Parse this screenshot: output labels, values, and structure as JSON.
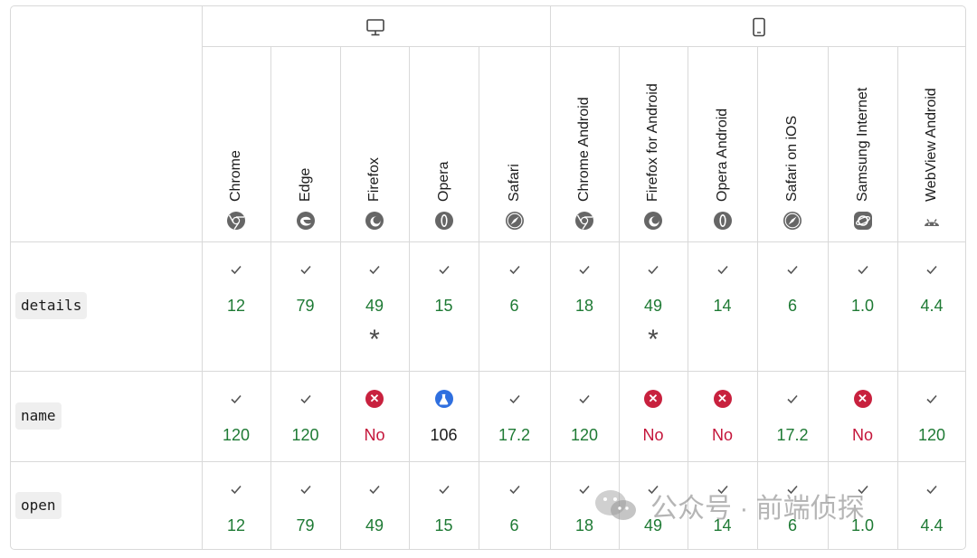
{
  "platforms": [
    {
      "name": "desktop",
      "icon": "monitor-icon"
    },
    {
      "name": "mobile",
      "icon": "phone-icon"
    }
  ],
  "browsers": [
    {
      "label": "Chrome",
      "icon": "chrome-icon"
    },
    {
      "label": "Edge",
      "icon": "edge-icon"
    },
    {
      "label": "Firefox",
      "icon": "firefox-icon"
    },
    {
      "label": "Opera",
      "icon": "opera-icon"
    },
    {
      "label": "Safari",
      "icon": "safari-icon"
    },
    {
      "label": "Chrome Android",
      "icon": "chrome-icon"
    },
    {
      "label": "Firefox for Android",
      "icon": "firefox-icon"
    },
    {
      "label": "Opera Android",
      "icon": "opera-icon"
    },
    {
      "label": "Safari on iOS",
      "icon": "safari-icon"
    },
    {
      "label": "Samsung Internet",
      "icon": "samsung-internet-icon"
    },
    {
      "label": "WebView Android",
      "icon": "android-icon"
    }
  ],
  "rows": [
    {
      "feature": "details",
      "cells": [
        {
          "status": "yes",
          "version": "12"
        },
        {
          "status": "yes",
          "version": "79"
        },
        {
          "status": "yes",
          "version": "49",
          "note": "*"
        },
        {
          "status": "yes",
          "version": "15"
        },
        {
          "status": "yes",
          "version": "6"
        },
        {
          "status": "yes",
          "version": "18"
        },
        {
          "status": "yes",
          "version": "49",
          "note": "*"
        },
        {
          "status": "yes",
          "version": "14"
        },
        {
          "status": "yes",
          "version": "6"
        },
        {
          "status": "yes",
          "version": "1.0"
        },
        {
          "status": "yes",
          "version": "4.4"
        }
      ]
    },
    {
      "feature": "name",
      "cells": [
        {
          "status": "yes",
          "version": "120"
        },
        {
          "status": "yes",
          "version": "120"
        },
        {
          "status": "no",
          "version": "No"
        },
        {
          "status": "preview",
          "version": "106"
        },
        {
          "status": "yes",
          "version": "17.2"
        },
        {
          "status": "yes",
          "version": "120"
        },
        {
          "status": "no",
          "version": "No"
        },
        {
          "status": "no",
          "version": "No"
        },
        {
          "status": "yes",
          "version": "17.2"
        },
        {
          "status": "no",
          "version": "No"
        },
        {
          "status": "yes",
          "version": "120"
        }
      ]
    },
    {
      "feature": "open",
      "cells": [
        {
          "status": "yes",
          "version": "12"
        },
        {
          "status": "yes",
          "version": "79"
        },
        {
          "status": "yes",
          "version": "49"
        },
        {
          "status": "yes",
          "version": "15"
        },
        {
          "status": "yes",
          "version": "6"
        },
        {
          "status": "yes",
          "version": "18"
        },
        {
          "status": "yes",
          "version": "49"
        },
        {
          "status": "yes",
          "version": "14"
        },
        {
          "status": "yes",
          "version": "6"
        },
        {
          "status": "yes",
          "version": "1.0"
        },
        {
          "status": "yes",
          "version": "4.4"
        }
      ]
    }
  ],
  "watermark": {
    "text": "公众号 · 前端侦探",
    "icon": "wechat-icon"
  },
  "colors": {
    "supported": "#1e7a34",
    "unsupported": "#c4153a",
    "preview": "#2f6fdf",
    "border": "#d9d9d9"
  }
}
